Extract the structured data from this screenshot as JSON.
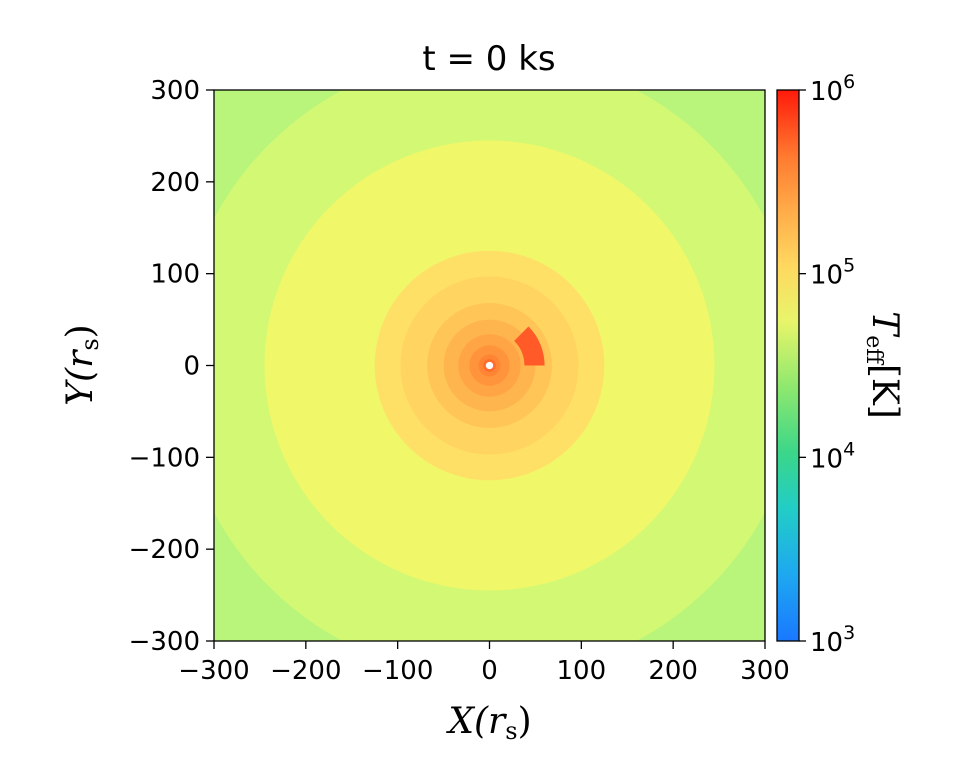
{
  "chart_data": {
    "type": "heatmap",
    "title": "t = 0 ks",
    "xlabel": "X(r_s)",
    "ylabel": "Y(r_s)",
    "xlim": [
      -300,
      300
    ],
    "ylim": [
      -300,
      300
    ],
    "xticks": [
      -300,
      -200,
      -100,
      0,
      100,
      200,
      300
    ],
    "yticks": [
      -300,
      -200,
      -100,
      0,
      100,
      200,
      300
    ],
    "xtick_labels": [
      "−300",
      "−200",
      "−100",
      "0",
      "100",
      "200",
      "300"
    ],
    "ytick_labels": [
      "−300",
      "−200",
      "−100",
      "0",
      "100",
      "200",
      "300"
    ],
    "colorbar": {
      "label": "T_eff[K]",
      "scale": "log",
      "range": [
        1000,
        1000000
      ],
      "ticks": [
        1000,
        10000,
        100000,
        1000000
      ],
      "tick_labels": [
        {
          "base": "10",
          "exp": "3"
        },
        {
          "base": "10",
          "exp": "4"
        },
        {
          "base": "10",
          "exp": "5"
        },
        {
          "base": "10",
          "exp": "6"
        }
      ],
      "colormap": "turbo"
    },
    "contour_levels": [
      {
        "outer_radius": 440,
        "color": "#b9f57a"
      },
      {
        "outer_radius": 340,
        "color": "#d3f874"
      },
      {
        "outer_radius": 245,
        "color": "#f0f769"
      },
      {
        "outer_radius": 125,
        "color": "#ffe066"
      },
      {
        "outer_radius": 97,
        "color": "#ffd460"
      },
      {
        "outer_radius": 68,
        "color": "#ffc557"
      },
      {
        "outer_radius": 50,
        "color": "#ffb54e"
      },
      {
        "outer_radius": 34,
        "color": "#ffa545"
      },
      {
        "outer_radius": 22,
        "color": "#ff943d"
      },
      {
        "outer_radius": 12,
        "color": "#ff8434"
      },
      {
        "outer_radius": 7,
        "color": "#ff6e2b"
      }
    ],
    "inner_hole_radius": 4,
    "hotspot": {
      "r_inner": 38,
      "r_outer": 60,
      "angle_start_deg": 0,
      "angle_end_deg": 45,
      "color": "#ff5a28"
    }
  }
}
